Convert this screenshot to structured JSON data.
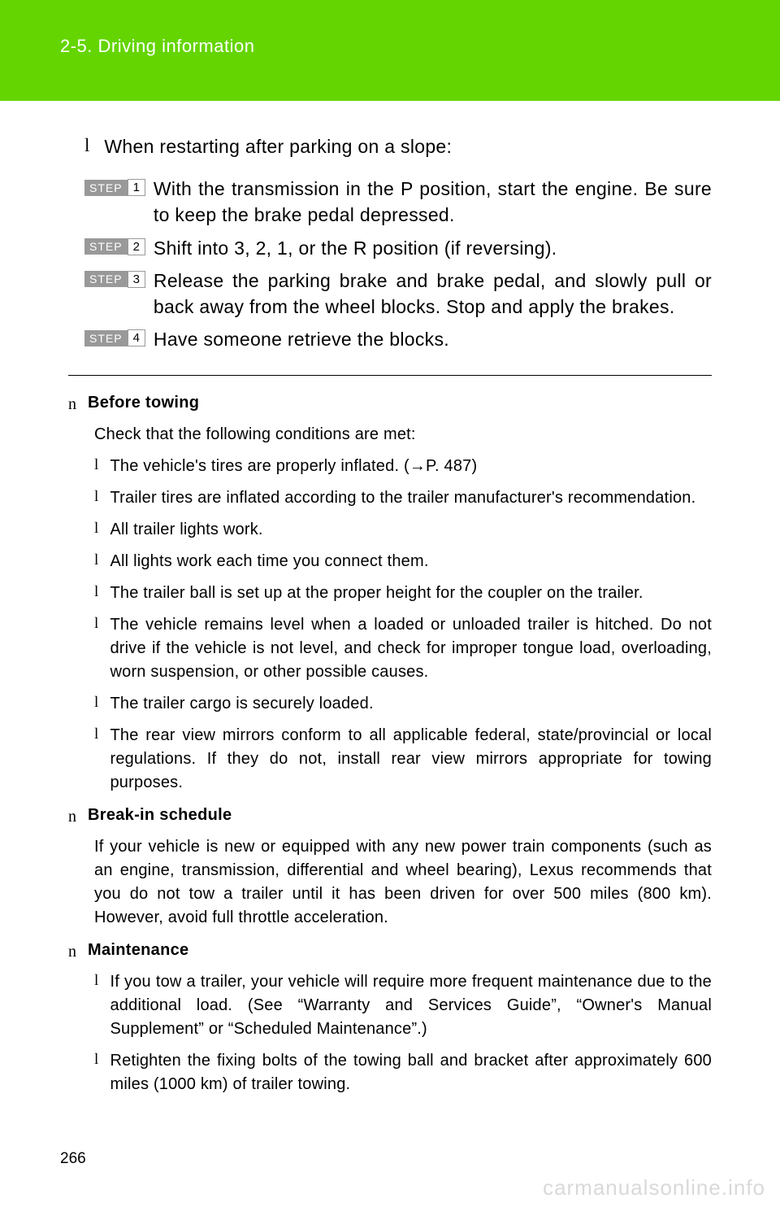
{
  "header": {
    "section_label": "2-5. Driving information"
  },
  "top": {
    "intro": "When restarting after parking on a slope:",
    "steps": [
      {
        "num": "1",
        "text": "With the transmission in the P position, start the engine. Be sure to keep the brake pedal depressed."
      },
      {
        "num": "2",
        "text": "Shift into 3, 2, 1, or the R position (if reversing)."
      },
      {
        "num": "3",
        "text": "Release the parking brake and brake pedal, and slowly pull or back away from the wheel blocks. Stop and apply the brakes."
      },
      {
        "num": "4",
        "text": "Have someone retrieve the blocks."
      }
    ],
    "step_label": "STEP"
  },
  "sections": {
    "before_towing": {
      "title": "Before towing",
      "intro": "Check that the following conditions are met:",
      "items": [
        "The vehicle's tires are properly inflated. (→P. 487)",
        "Trailer tires are inflated according to the trailer manufacturer's recommendation.",
        "All trailer lights work.",
        "All lights work each time you connect them.",
        "The trailer ball is set up at the proper height for the coupler on the trailer.",
        "The vehicle remains level when a loaded or unloaded trailer is hitched. Do not drive if the vehicle is not level, and check for improper tongue load, overloading, worn suspension, or other possible causes.",
        "The trailer cargo is securely loaded.",
        "The rear view mirrors conform to all applicable federal, state/provincial or local regulations. If they do not, install rear view mirrors appropriate for towing purposes."
      ]
    },
    "break_in": {
      "title": "Break-in schedule",
      "body": "If your vehicle is new or equipped with any new power train components (such as an engine, transmission, differential and wheel bearing), Lexus recommends that you do not tow a trailer until it has been driven for over 500 miles (800 km). However, avoid full throttle acceleration."
    },
    "maintenance": {
      "title": "Maintenance",
      "items": [
        "If you tow a trailer, your vehicle will require more frequent maintenance due to the additional load. (See “Warranty and Services Guide”, “Owner's Manual Supplement” or “Scheduled Maintenance”.)",
        "Retighten the fixing bolts of the towing ball and bracket after approximately 600 miles (1000 km) of trailer towing."
      ]
    }
  },
  "page_number": "266",
  "watermark": "carmanualsonline.info",
  "markers": {
    "l": "l",
    "n": "n"
  }
}
